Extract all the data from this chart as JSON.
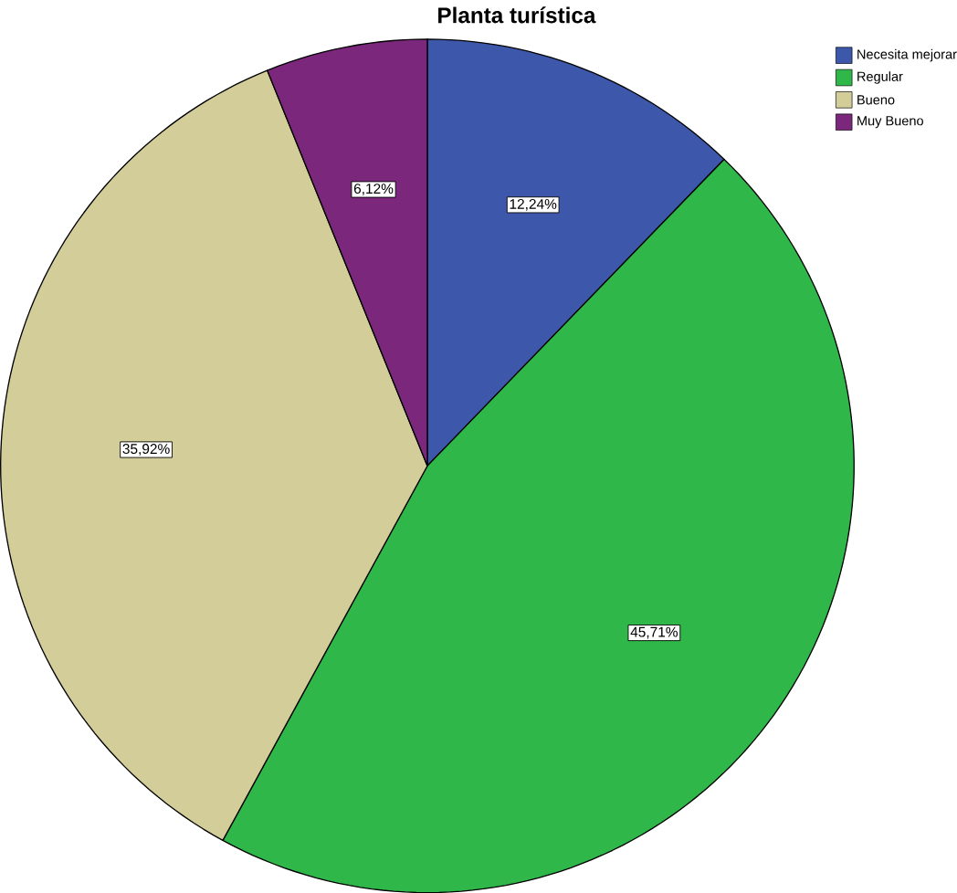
{
  "chart_data": {
    "type": "pie",
    "title": "Planta turística",
    "categories": [
      "Necesita mejorar",
      "Regular",
      "Bueno",
      "Muy Bueno"
    ],
    "values": [
      12.24,
      45.71,
      35.92,
      6.12
    ],
    "value_labels": [
      "12,24%",
      "45,71%",
      "35,92%",
      "6,12%"
    ],
    "colors": [
      "#3d58ab",
      "#2fb849",
      "#d3cd9a",
      "#7b287c"
    ],
    "legend": "top right"
  }
}
